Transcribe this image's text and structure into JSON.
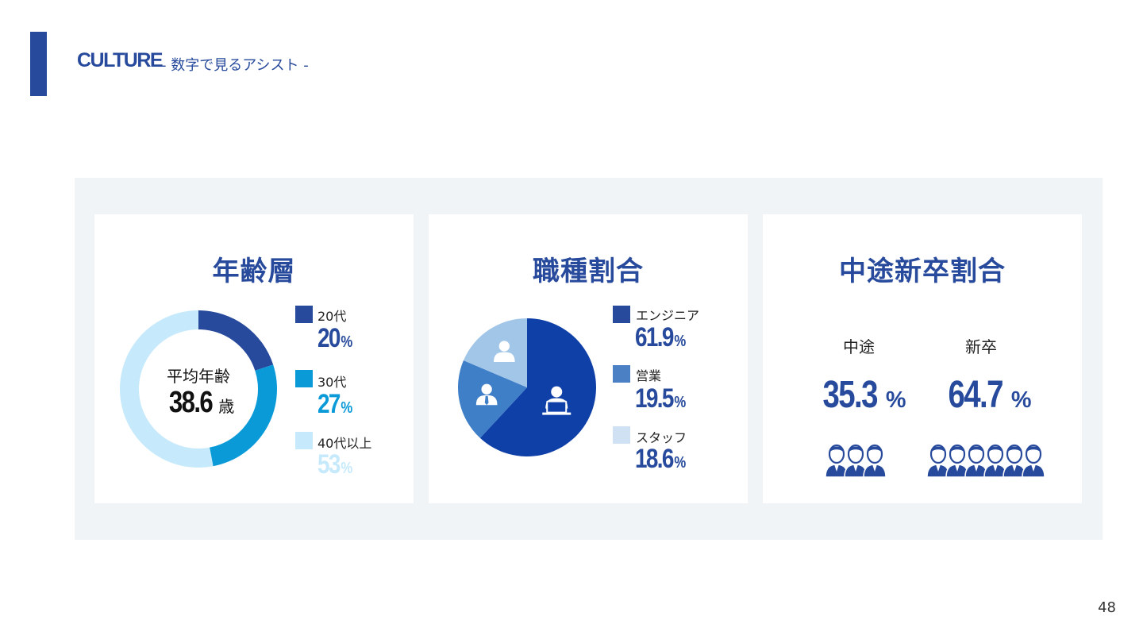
{
  "header": {
    "title": "CULTURE",
    "subtitle": "- 数字で見るアシスト -"
  },
  "colors": {
    "primary": "#274a9c",
    "age20": "#274a9c",
    "age30": "#0b9ad8",
    "age40": "#c6eafb",
    "engineer": "#0f40a8",
    "sales": "#3f7fc8",
    "staff": "#a2c6e8",
    "panel_bg": "#f0f4f7"
  },
  "age": {
    "title": "年齢層",
    "center_label": "平均年齢",
    "center_value": "38.6",
    "center_unit": "歳",
    "legend": [
      {
        "label": "20代",
        "value": "20",
        "unit": "%"
      },
      {
        "label": "30代",
        "value": "27",
        "unit": "%"
      },
      {
        "label": "40代以上",
        "value": "53",
        "unit": "%"
      }
    ]
  },
  "job": {
    "title": "職種割合",
    "legend": [
      {
        "label": "エンジニア",
        "value": "61.9",
        "unit": "%",
        "icon": "engineer-at-laptop-icon"
      },
      {
        "label": "営業",
        "value": "19.5",
        "unit": "%",
        "icon": "businessperson-icon"
      },
      {
        "label": "スタッフ",
        "value": "18.6",
        "unit": "%",
        "icon": "person-icon"
      }
    ]
  },
  "hire": {
    "title": "中途新卒割合",
    "items": [
      {
        "label": "中途",
        "value": "35.3",
        "unit": "%",
        "people_icons": 3
      },
      {
        "label": "新卒",
        "value": "64.7",
        "unit": "%",
        "people_icons": 6
      }
    ]
  },
  "page_number": "48",
  "chart_data": [
    {
      "type": "pie",
      "variant": "donut",
      "title": "年齢層",
      "categories": [
        "20代",
        "30代",
        "40代以上"
      ],
      "values": [
        20,
        27,
        53
      ],
      "center_text": "平均年齢 38.6 歳"
    },
    {
      "type": "pie",
      "title": "職種割合",
      "categories": [
        "エンジニア",
        "営業",
        "スタッフ"
      ],
      "values": [
        61.9,
        19.5,
        18.6
      ]
    },
    {
      "type": "bar",
      "variant": "pictogram",
      "title": "中途新卒割合",
      "categories": [
        "中途",
        "新卒"
      ],
      "values": [
        35.3,
        64.7
      ]
    }
  ]
}
